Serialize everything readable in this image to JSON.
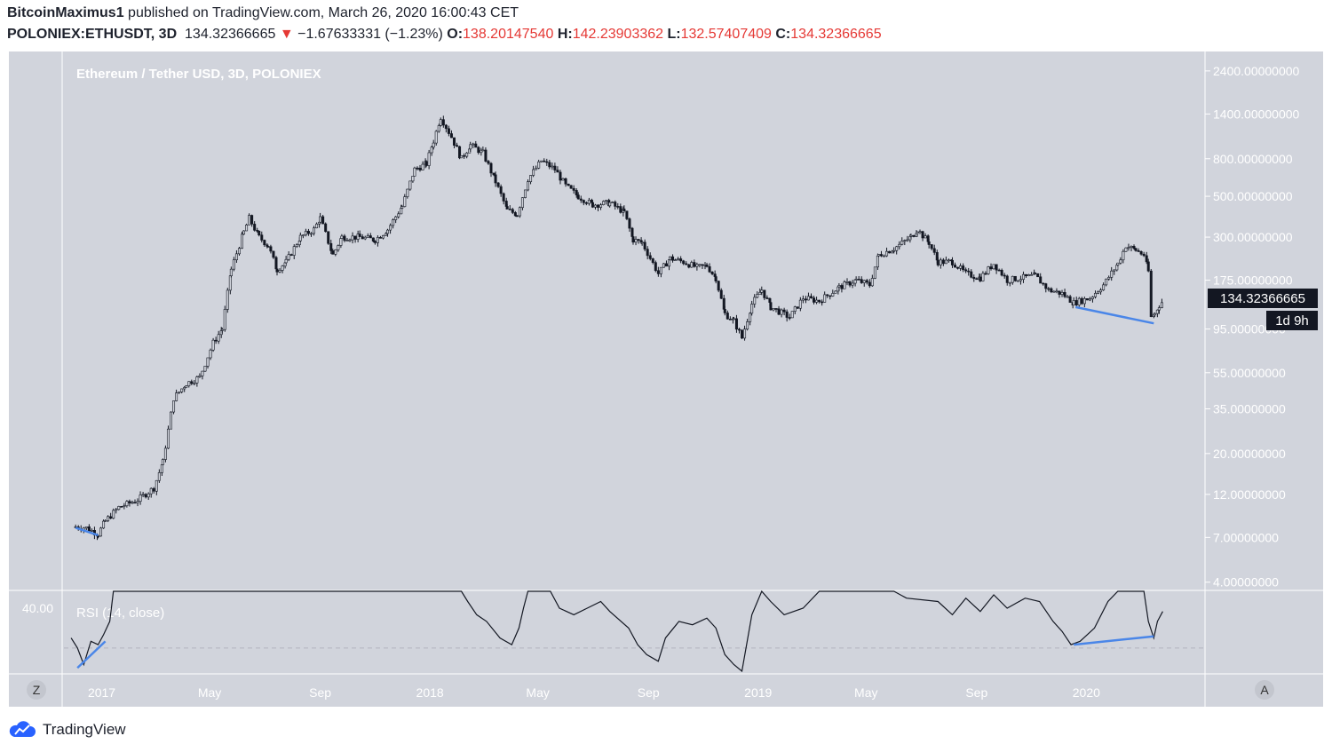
{
  "header": {
    "author": "BitcoinMaximus1",
    "published_text": "published on TradingView.com, March 26, 2020 16:00:43 CET",
    "symbol": "POLONIEX:ETHUSDT, 3D",
    "last": "134.32366665",
    "change_arrow": "▼",
    "change": "−1.67633331 (−1.23%)",
    "o_label": "O:",
    "o_value": "138.20147540",
    "h_label": "H:",
    "h_value": "142.23903362",
    "l_label": "L:",
    "l_value": "132.57407409",
    "c_label": "C:",
    "c_value": "134.32366665"
  },
  "footer": {
    "brand": "TradingView",
    "z_button": "Z",
    "a_button": "A"
  },
  "colors": {
    "pane_bg": "#d1d4dc",
    "candle": "#131722",
    "trendline": "#4a86e8",
    "red": "#e53935",
    "price_tag_bg": "#131722"
  },
  "chart_data": {
    "type": "candlestick",
    "title": "Ethereum / Tether USD, 3D, POLONIEX",
    "y_scale": "log",
    "y_ticks": [
      "2400.00000000",
      "1400.00000000",
      "800.00000000",
      "500.00000000",
      "300.00000000",
      "175.00000000",
      "95.00000000",
      "55.00000000",
      "35.00000000",
      "20.00000000",
      "12.00000000",
      "7.00000000",
      "4.00000000"
    ],
    "y_tick_values": [
      2400,
      1400,
      800,
      500,
      300,
      175,
      95,
      55,
      35,
      20,
      12,
      7,
      4
    ],
    "x_ticks": [
      "2017",
      "May",
      "Sep",
      "2018",
      "May",
      "Sep",
      "2019",
      "May",
      "Sep",
      "2020"
    ],
    "x_tick_dates": [
      "2017-01-01",
      "2017-05-01",
      "2017-09-01",
      "2018-01-01",
      "2018-05-01",
      "2018-09-01",
      "2019-01-01",
      "2019-05-01",
      "2019-09-01",
      "2020-01-01"
    ],
    "x_range": [
      "2016-11-20",
      "2020-05-10"
    ],
    "y_range": [
      3.9,
      2800
    ],
    "last_price_label": "134.32366665",
    "countdown_label": "1d 9h",
    "price_path": [
      [
        "2016-12-03",
        8.0
      ],
      [
        "2016-12-15",
        7.9
      ],
      [
        "2016-12-28",
        7.3
      ],
      [
        "2017-01-05",
        8.6
      ],
      [
        "2017-01-20",
        10.2
      ],
      [
        "2017-02-10",
        11.2
      ],
      [
        "2017-02-28",
        13.0
      ],
      [
        "2017-03-10",
        18.0
      ],
      [
        "2017-03-22",
        40.0
      ],
      [
        "2017-04-05",
        48.0
      ],
      [
        "2017-04-20",
        52.0
      ],
      [
        "2017-05-05",
        80.0
      ],
      [
        "2017-05-15",
        95.0
      ],
      [
        "2017-05-25",
        200.0
      ],
      [
        "2017-06-08",
        320.0
      ],
      [
        "2017-06-14",
        380.0
      ],
      [
        "2017-06-25",
        300.0
      ],
      [
        "2017-07-05",
        270.0
      ],
      [
        "2017-07-15",
        200.0
      ],
      [
        "2017-07-25",
        220.0
      ],
      [
        "2017-08-10",
        300.0
      ],
      [
        "2017-08-25",
        330.0
      ],
      [
        "2017-09-01",
        380.0
      ],
      [
        "2017-09-15",
        240.0
      ],
      [
        "2017-09-25",
        300.0
      ],
      [
        "2017-10-15",
        300.0
      ],
      [
        "2017-11-01",
        290.0
      ],
      [
        "2017-11-15",
        330.0
      ],
      [
        "2017-12-01",
        440.0
      ],
      [
        "2017-12-15",
        700.0
      ],
      [
        "2017-12-28",
        750.0
      ],
      [
        "2018-01-05",
        1000.0
      ],
      [
        "2018-01-13",
        1350.0
      ],
      [
        "2018-01-25",
        1050.0
      ],
      [
        "2018-02-05",
        800.0
      ],
      [
        "2018-02-15",
        950.0
      ],
      [
        "2018-03-01",
        860.0
      ],
      [
        "2018-03-15",
        600.0
      ],
      [
        "2018-03-28",
        420.0
      ],
      [
        "2018-04-08",
        400.0
      ],
      [
        "2018-04-20",
        620.0
      ],
      [
        "2018-05-05",
        780.0
      ],
      [
        "2018-05-20",
        700.0
      ],
      [
        "2018-06-01",
        570.0
      ],
      [
        "2018-06-15",
        500.0
      ],
      [
        "2018-07-01",
        450.0
      ],
      [
        "2018-07-20",
        460.0
      ],
      [
        "2018-08-05",
        410.0
      ],
      [
        "2018-08-15",
        290.0
      ],
      [
        "2018-08-25",
        280.0
      ],
      [
        "2018-09-12",
        190.0
      ],
      [
        "2018-09-25",
        230.0
      ],
      [
        "2018-10-10",
        220.0
      ],
      [
        "2018-10-25",
        205.0
      ],
      [
        "2018-11-05",
        210.0
      ],
      [
        "2018-11-15",
        180.0
      ],
      [
        "2018-11-25",
        115.0
      ],
      [
        "2018-12-05",
        105.0
      ],
      [
        "2018-12-14",
        85.0
      ],
      [
        "2018-12-25",
        130.0
      ],
      [
        "2019-01-05",
        155.0
      ],
      [
        "2019-01-15",
        125.0
      ],
      [
        "2019-02-05",
        110.0
      ],
      [
        "2019-02-20",
        140.0
      ],
      [
        "2019-03-10",
        135.0
      ],
      [
        "2019-04-01",
        160.0
      ],
      [
        "2019-04-20",
        175.0
      ],
      [
        "2019-05-05",
        165.0
      ],
      [
        "2019-05-15",
        240.0
      ],
      [
        "2019-06-01",
        260.0
      ],
      [
        "2019-06-20",
        300.0
      ],
      [
        "2019-06-27",
        330.0
      ],
      [
        "2019-07-10",
        280.0
      ],
      [
        "2019-07-20",
        220.0
      ],
      [
        "2019-08-05",
        220.0
      ],
      [
        "2019-08-20",
        190.0
      ],
      [
        "2019-09-05",
        180.0
      ],
      [
        "2019-09-20",
        215.0
      ],
      [
        "2019-10-05",
        175.0
      ],
      [
        "2019-10-20",
        180.0
      ],
      [
        "2019-11-05",
        185.0
      ],
      [
        "2019-11-20",
        155.0
      ],
      [
        "2019-12-05",
        148.0
      ],
      [
        "2019-12-18",
        132.0
      ],
      [
        "2020-01-05",
        140.0
      ],
      [
        "2020-01-20",
        165.0
      ],
      [
        "2020-02-05",
        215.0
      ],
      [
        "2020-02-14",
        270.0
      ],
      [
        "2020-02-25",
        255.0
      ],
      [
        "2020-03-05",
        240.0
      ],
      [
        "2020-03-10",
        195.0
      ],
      [
        "2020-03-13",
        110.0
      ],
      [
        "2020-03-17",
        115.0
      ],
      [
        "2020-03-22",
        128.0
      ],
      [
        "2020-03-26",
        134.3
      ]
    ],
    "price_trendlines": [
      {
        "from": [
          "2016-12-03",
          7.9
        ],
        "to": [
          "2016-12-28",
          7.2
        ]
      },
      {
        "from": [
          "2019-12-20",
          125.0
        ],
        "to": [
          "2020-03-16",
          102.0
        ]
      }
    ],
    "rsi": {
      "label": "RSI (14, close)",
      "tick_label": "40.00",
      "tick_value": 40,
      "mid_level": 30,
      "y_range": [
        23,
        46
      ],
      "path": [
        [
          "2016-11-28",
          33
        ],
        [
          "2016-12-05",
          30
        ],
        [
          "2016-12-12",
          25
        ],
        [
          "2016-12-20",
          32
        ],
        [
          "2016-12-28",
          31
        ],
        [
          "2017-01-03",
          34
        ],
        [
          "2017-01-10",
          38
        ],
        [
          "2017-01-14",
          48
        ],
        [
          "2018-02-05",
          48
        ],
        [
          "2018-02-12",
          44
        ],
        [
          "2018-02-22",
          40
        ],
        [
          "2018-03-05",
          38
        ],
        [
          "2018-03-20",
          33
        ],
        [
          "2018-04-02",
          31
        ],
        [
          "2018-04-10",
          36
        ],
        [
          "2018-04-15",
          42
        ],
        [
          "2018-04-20",
          48
        ],
        [
          "2018-05-15",
          48
        ],
        [
          "2018-05-25",
          42
        ],
        [
          "2018-06-10",
          40
        ],
        [
          "2018-06-25",
          42
        ],
        [
          "2018-07-10",
          44
        ],
        [
          "2018-07-20",
          41
        ],
        [
          "2018-08-10",
          36
        ],
        [
          "2018-08-20",
          31
        ],
        [
          "2018-08-30",
          28
        ],
        [
          "2018-09-12",
          26
        ],
        [
          "2018-09-20",
          33
        ],
        [
          "2018-10-05",
          38
        ],
        [
          "2018-10-20",
          37
        ],
        [
          "2018-11-05",
          39
        ],
        [
          "2018-11-15",
          36
        ],
        [
          "2018-11-25",
          28
        ],
        [
          "2018-12-05",
          25
        ],
        [
          "2018-12-14",
          23
        ],
        [
          "2018-12-25",
          40
        ],
        [
          "2019-01-05",
          48
        ],
        [
          "2019-01-15",
          44
        ],
        [
          "2019-01-30",
          40
        ],
        [
          "2019-02-20",
          42
        ],
        [
          "2019-03-10",
          48
        ],
        [
          "2019-06-01",
          48
        ],
        [
          "2019-06-15",
          45
        ],
        [
          "2019-07-20",
          44
        ],
        [
          "2019-08-05",
          40
        ],
        [
          "2019-08-20",
          45
        ],
        [
          "2019-09-05",
          41
        ],
        [
          "2019-09-20",
          46
        ],
        [
          "2019-10-05",
          42
        ],
        [
          "2019-10-25",
          45
        ],
        [
          "2019-11-10",
          44
        ],
        [
          "2019-11-25",
          38
        ],
        [
          "2019-12-05",
          35
        ],
        [
          "2019-12-15",
          31
        ],
        [
          "2019-12-25",
          32
        ],
        [
          "2020-01-10",
          36
        ],
        [
          "2020-01-25",
          44
        ],
        [
          "2020-02-05",
          48
        ],
        [
          "2020-03-05",
          48
        ],
        [
          "2020-03-10",
          38
        ],
        [
          "2020-03-16",
          33
        ],
        [
          "2020-03-20",
          38
        ],
        [
          "2020-03-26",
          41
        ]
      ],
      "trendlines": [
        {
          "from": [
            "2016-12-05",
            24
          ],
          "to": [
            "2017-01-05",
            32
          ]
        },
        {
          "from": [
            "2019-12-18",
            31
          ],
          "to": [
            "2020-03-16",
            33.5
          ]
        }
      ]
    }
  }
}
